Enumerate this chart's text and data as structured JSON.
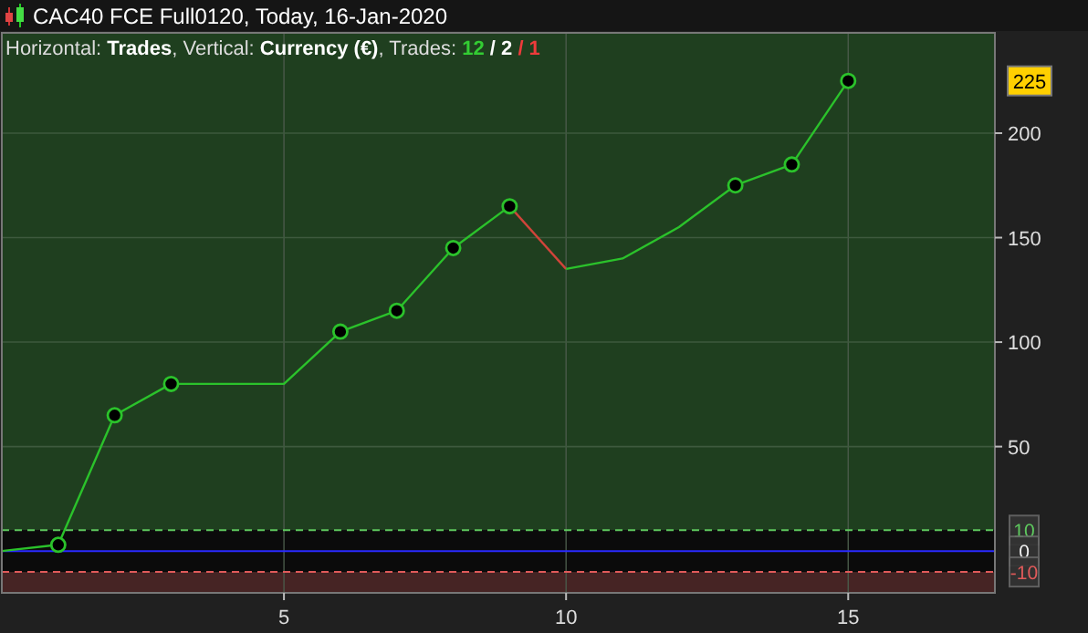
{
  "chart_data": {
    "type": "line",
    "title": "CAC40 FCE Full0120, Today, 16-Jan-2020",
    "subtitle": "Horizontal: Trades, Vertical: Currency (€), Trades: 12 / 2 / 1",
    "xlim": [
      0,
      17.6
    ],
    "ylim": [
      -20,
      248
    ],
    "xticks": [
      5,
      10,
      15
    ],
    "yticks": [
      50,
      100,
      150,
      200
    ],
    "grid": true,
    "series": [
      {
        "color": "#2bc22b",
        "x": [
          0,
          1,
          2,
          3,
          4,
          5,
          6,
          7,
          8,
          9
        ],
        "values": [
          0,
          3,
          65,
          80,
          80,
          80,
          105,
          115,
          145,
          165
        ]
      },
      {
        "color": "#d0443a",
        "x": [
          9,
          10
        ],
        "values": [
          165,
          135
        ]
      },
      {
        "color": "#2bc22b",
        "x": [
          10,
          11,
          12,
          13,
          14,
          15
        ],
        "values": [
          135,
          140,
          155,
          175,
          185,
          225
        ]
      },
      {
        "type": "scatter",
        "color": "#2bc22b",
        "marker": "circle",
        "x": [
          1,
          2,
          3,
          6,
          7,
          8,
          9,
          13,
          14,
          15
        ],
        "values": [
          3,
          65,
          80,
          105,
          115,
          145,
          165,
          175,
          185,
          225
        ]
      }
    ],
    "bands": [
      {
        "axis": "y",
        "from": 10,
        "to": 248,
        "color": "#1f3f1f"
      },
      {
        "axis": "y",
        "from": -10,
        "to": 10,
        "color": "#0b0b0b"
      },
      {
        "axis": "y",
        "from": -20,
        "to": -10,
        "color": "#462424"
      }
    ],
    "ref_lines": [
      {
        "axis": "y",
        "value": 10,
        "label": "10",
        "color": "#5ec85e",
        "line_style": "dashed"
      },
      {
        "axis": "y",
        "value": 0,
        "label": "0",
        "color": "#2a2aff",
        "line_style": "solid"
      },
      {
        "axis": "y",
        "value": -10,
        "label": "-10",
        "color": "#e05a5a",
        "line_style": "dashed"
      }
    ],
    "annotations": [
      "225"
    ]
  }
}
